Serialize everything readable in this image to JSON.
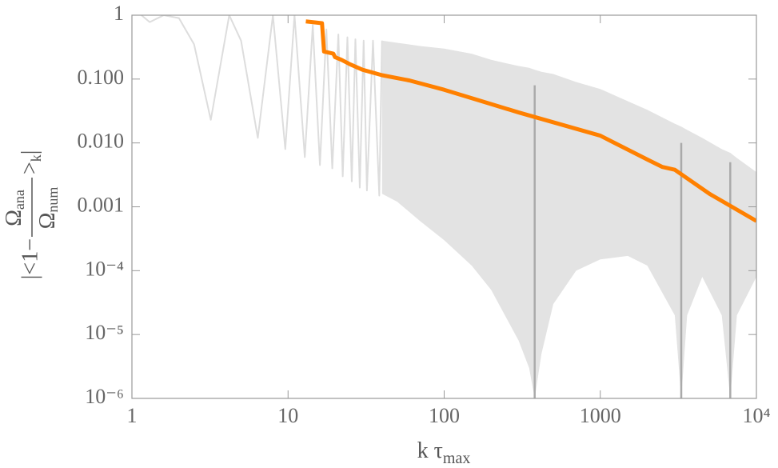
{
  "chart_data": {
    "type": "line",
    "xlog": true,
    "ylog": true,
    "xlim": [
      1,
      10000
    ],
    "ylim": [
      1e-06,
      1
    ],
    "xticks": [
      1,
      10,
      100,
      1000,
      {
        "value": 10000,
        "label": "10⁴"
      }
    ],
    "yticks": [
      {
        "value": 1e-06,
        "label": "10⁻⁶"
      },
      {
        "value": 1e-05,
        "label": "10⁻⁵"
      },
      {
        "value": 0.0001,
        "label": "10⁻⁴"
      },
      {
        "value": 0.001,
        "label": "0.001"
      },
      {
        "value": 0.01,
        "label": "0.010"
      },
      {
        "value": 0.1,
        "label": "0.100"
      },
      1
    ],
    "xlabel": {
      "main": "k τ",
      "sub": "max"
    },
    "ylabel": {
      "prefix": "|<1−",
      "numerator": "Ω",
      "numerator_sub": "ana",
      "denominator": "Ω",
      "denominator_sub": "num",
      "suffix": ">",
      "suffix_sub": "k",
      "end": "|"
    },
    "series": [
      {
        "kind": "line",
        "color": "#dddddd",
        "x": [
          1.15,
          1.3,
          1.6,
          2.0,
          2.5,
          3.2,
          4.2,
          5.0,
          6.4,
          8.0,
          9.6,
          11,
          12.8,
          14.4,
          16,
          17.6,
          19.2,
          21,
          22.4,
          24,
          25.6,
          27,
          28.8,
          30.5,
          32,
          35,
          38.4,
          40
        ],
        "values": [
          1,
          0.78,
          1,
          0.9,
          0.35,
          0.023,
          1,
          0.4,
          0.012,
          1,
          0.008,
          1,
          0.006,
          0.7,
          0.0045,
          0.6,
          0.004,
          0.5,
          0.003,
          0.45,
          0.0025,
          0.42,
          0.002,
          0.4,
          0.0018,
          0.4,
          0.0015,
          0.4
        ]
      },
      {
        "kind": "band",
        "color": "#e3e3e3",
        "x": [
          40,
          50,
          70,
          100,
          150,
          200,
          300,
          350,
          380,
          420,
          500,
          700,
          1000,
          1500,
          2000,
          3000,
          3300,
          3600,
          4500,
          6000,
          6800,
          7500,
          10000
        ],
        "upper": [
          0.4,
          0.37,
          0.33,
          0.3,
          0.25,
          0.2,
          0.16,
          0.15,
          0.14,
          0.13,
          0.12,
          0.09,
          0.07,
          0.045,
          0.033,
          0.02,
          0.018,
          0.016,
          0.012,
          0.008,
          0.007,
          0.0058,
          0.0035
        ],
        "lower": [
          0.0016,
          0.0012,
          0.0006,
          0.0003,
          0.00012,
          5e-05,
          8e-06,
          3e-06,
          1e-06,
          5e-06,
          3e-05,
          0.0001,
          0.00015,
          0.00017,
          0.00012,
          2e-05,
          1e-06,
          2e-05,
          8e-05,
          2e-05,
          1e-06,
          2e-05,
          8e-05
        ]
      },
      {
        "kind": "spikes",
        "color": "#aaaaaa",
        "x": [
          380,
          3300,
          6800
        ],
        "values": [
          0.08,
          0.01,
          0.005
        ]
      },
      {
        "kind": "line",
        "color": "#ff8000",
        "width": 5,
        "x": [
          13,
          16.5,
          17,
          19.5,
          20,
          22,
          25,
          30,
          40,
          60,
          100,
          300,
          1000,
          2000,
          2500,
          3000,
          5000,
          10000
        ],
        "values": [
          0.8,
          0.75,
          0.27,
          0.25,
          0.22,
          0.2,
          0.17,
          0.14,
          0.115,
          0.095,
          0.068,
          0.03,
          0.013,
          0.0055,
          0.0042,
          0.0038,
          0.0016,
          0.0006
        ]
      }
    ]
  }
}
